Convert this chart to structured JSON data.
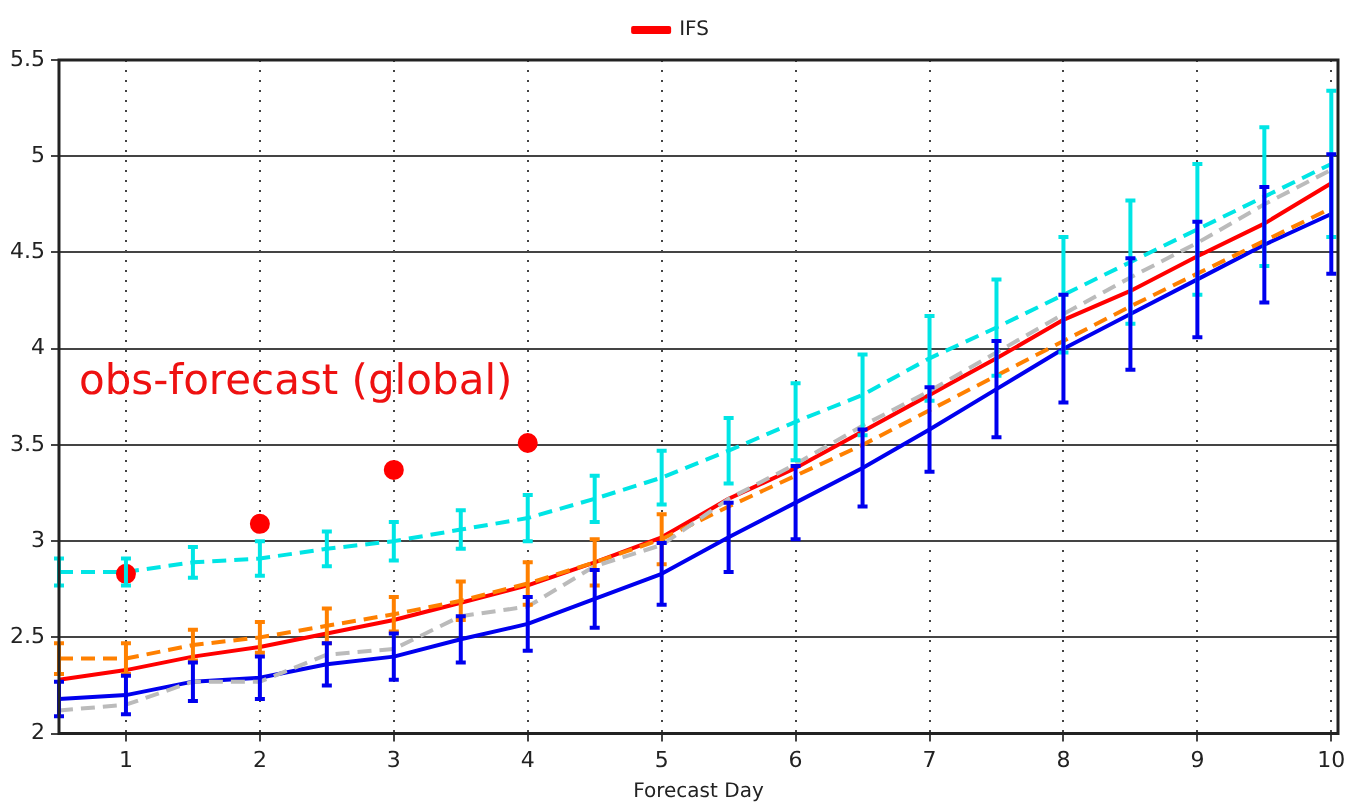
{
  "chart_data": {
    "type": "line",
    "xlabel": "Forecast Day",
    "annotations": [
      "obs-forecast (global)"
    ],
    "x": [
      0.5,
      1,
      1.5,
      2,
      2.5,
      3,
      3.5,
      4,
      4.5,
      5,
      5.5,
      6,
      6.5,
      7,
      7.5,
      8,
      8.5,
      9,
      9.5,
      10
    ],
    "xlim": [
      0.5,
      10.05
    ],
    "xticks": [
      1,
      2,
      3,
      4,
      5,
      6,
      7,
      8,
      9,
      10
    ],
    "ylim": [
      2,
      5.5
    ],
    "yticks": [
      2,
      2.5,
      3,
      3.5,
      4,
      4.5,
      5,
      5.5
    ],
    "grid": true,
    "legend": "top",
    "marker": "none",
    "series": [
      {
        "color": "#bbbbbb",
        "line_style": "dashed",
        "values": [
          2.12,
          2.15,
          2.27,
          2.27,
          2.41,
          2.44,
          2.61,
          2.66,
          2.87,
          2.98,
          3.22,
          3.4,
          3.6,
          3.78,
          3.98,
          4.18,
          4.37,
          4.55,
          4.75,
          4.93
        ]
      },
      {
        "color": "#00e5e5",
        "line_style": "dashed",
        "values": [
          2.84,
          2.84,
          2.89,
          2.91,
          2.96,
          3.0,
          3.06,
          3.12,
          3.22,
          3.33,
          3.47,
          3.62,
          3.76,
          3.95,
          4.11,
          4.28,
          4.45,
          4.62,
          4.79,
          4.96
        ],
        "errors": [
          0.07,
          0.07,
          0.08,
          0.09,
          0.09,
          0.1,
          0.1,
          0.12,
          0.12,
          0.14,
          0.17,
          0.2,
          0.21,
          0.22,
          0.25,
          0.3,
          0.32,
          0.34,
          0.36,
          0.38
        ]
      },
      {
        "color": "#ff8000",
        "line_style": "dashed",
        "values": [
          2.39,
          2.39,
          2.46,
          2.5,
          2.56,
          2.62,
          2.69,
          2.78,
          2.89,
          3.01,
          3.18,
          3.34,
          3.5,
          3.68,
          3.86,
          4.04,
          4.22,
          4.39,
          4.56,
          4.73
        ],
        "errors": [
          0.08,
          0.08,
          0.08,
          0.08,
          0.09,
          0.09,
          0.1,
          0.11,
          0.12,
          0.13,
          null,
          null,
          null,
          null,
          null,
          null,
          null,
          null,
          null,
          null
        ]
      },
      {
        "name": "IFS",
        "color": "#ff0000",
        "line_style": "solid",
        "values": [
          2.28,
          2.33,
          2.4,
          2.45,
          2.52,
          2.59,
          2.68,
          2.77,
          2.89,
          3.02,
          3.22,
          3.38,
          3.57,
          3.76,
          3.95,
          4.15,
          4.3,
          4.48,
          4.65,
          4.86
        ]
      },
      {
        "color": "#0000ee",
        "line_style": "solid",
        "values": [
          2.18,
          2.2,
          2.27,
          2.29,
          2.36,
          2.4,
          2.49,
          2.57,
          2.7,
          2.83,
          3.02,
          3.2,
          3.38,
          3.58,
          3.79,
          4.0,
          4.18,
          4.36,
          4.54,
          4.7
        ],
        "errors": [
          0.09,
          0.1,
          0.1,
          0.11,
          0.11,
          0.12,
          0.12,
          0.14,
          0.15,
          0.16,
          0.18,
          0.19,
          0.2,
          0.22,
          0.25,
          0.28,
          0.29,
          0.3,
          0.3,
          0.31
        ]
      },
      {
        "type": "scatter",
        "color": "#ff0000",
        "marker": "circle",
        "x": [
          1,
          2,
          3,
          4
        ],
        "values": [
          2.83,
          3.09,
          3.37,
          3.51
        ]
      }
    ]
  }
}
